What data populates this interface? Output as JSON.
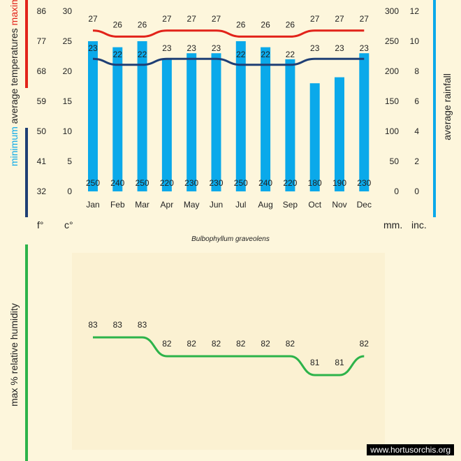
{
  "chart_data": [
    {
      "type": "bar+line",
      "title": "Bulbophyllum graveolens",
      "categories": [
        "Jan",
        "Feb",
        "Mar",
        "Apr",
        "May",
        "Jun",
        "Jul",
        "Aug",
        "Sep",
        "Oct",
        "Nov",
        "Dec"
      ],
      "rainfall_mm": [
        250,
        240,
        250,
        220,
        230,
        230,
        250,
        240,
        220,
        180,
        190,
        230
      ],
      "max_temp_c": [
        27,
        26,
        26,
        27,
        27,
        27,
        26,
        26,
        26,
        27,
        27,
        27
      ],
      "min_temp_c": [
        23,
        22,
        22,
        23,
        23,
        23,
        22,
        22,
        22,
        23,
        23,
        23
      ],
      "left_axis_f_ticks": [
        "86",
        "77",
        "68",
        "59",
        "50",
        "41",
        "32"
      ],
      "left_axis_c_ticks": [
        "30",
        "25",
        "20",
        "15",
        "10",
        "5",
        "0"
      ],
      "right_axis_mm_ticks": [
        "300",
        "250",
        "200",
        "150",
        "100",
        "50",
        "0"
      ],
      "right_axis_inc_ticks": [
        "12",
        "10",
        "8",
        "6",
        "4",
        "2",
        "0"
      ],
      "temp_ylim_c": [
        0,
        30
      ],
      "rain_ylim_mm": [
        0,
        300
      ],
      "left_label_parts": {
        "minimum": "minimum",
        "average": "average temperatures",
        "maximum": "maximum"
      },
      "right_label": "average rainfall",
      "unit_f": "f°",
      "unit_c": "c°",
      "unit_mm": "mm.",
      "unit_inc": "inc.",
      "colors": {
        "bars": "#0aa9ea",
        "max_line": "#e2231a",
        "min_line": "#1f3f75",
        "hum_line": "#2db34a"
      }
    },
    {
      "type": "line",
      "ylabel": "max % relative humidity",
      "values": [
        83,
        83,
        83,
        82,
        82,
        82,
        82,
        82,
        82,
        81,
        81,
        82
      ],
      "ylim": [
        80,
        84
      ]
    }
  ],
  "footer": {
    "credit": "www.hortusorchis.org"
  }
}
